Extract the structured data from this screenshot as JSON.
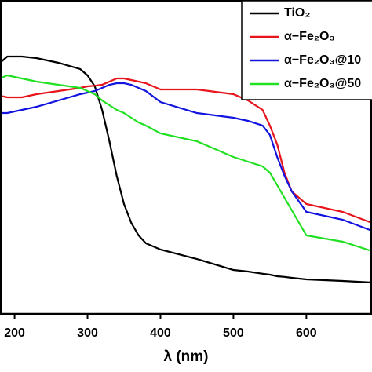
{
  "chart_data": {
    "type": "line",
    "x_label": "λ (nm)",
    "x": [
      180,
      190,
      210,
      230,
      260,
      290,
      300,
      310,
      320,
      330,
      340,
      350,
      360,
      370,
      380,
      400,
      450,
      500,
      520,
      540,
      550,
      560,
      570,
      580,
      600,
      650,
      690
    ],
    "series": [
      {
        "name": "TiO₂",
        "color": "#000000",
        "values": [
          0.8,
          0.82,
          0.82,
          0.815,
          0.8,
          0.78,
          0.76,
          0.725,
          0.65,
          0.55,
          0.44,
          0.35,
          0.29,
          0.25,
          0.225,
          0.205,
          0.175,
          0.14,
          0.135,
          0.128,
          0.125,
          0.12,
          0.118,
          0.115,
          0.11,
          0.105,
          0.1
        ]
      },
      {
        "name": "α−Fe₂O₃",
        "color": "#e8141c",
        "values": [
          0.695,
          0.69,
          0.69,
          0.7,
          0.71,
          0.72,
          0.725,
          0.727,
          0.73,
          0.74,
          0.75,
          0.75,
          0.745,
          0.74,
          0.735,
          0.715,
          0.715,
          0.7,
          0.68,
          0.65,
          0.6,
          0.54,
          0.45,
          0.39,
          0.35,
          0.325,
          0.29
        ]
      },
      {
        "name": "α−Fe₂O₃@10",
        "color": "#1414e0",
        "values": [
          0.64,
          0.64,
          0.65,
          0.66,
          0.68,
          0.7,
          0.705,
          0.71,
          0.72,
          0.73,
          0.735,
          0.735,
          0.73,
          0.72,
          0.71,
          0.675,
          0.64,
          0.625,
          0.615,
          0.6,
          0.57,
          0.5,
          0.44,
          0.39,
          0.325,
          0.3,
          0.265
        ]
      },
      {
        "name": "α−Fe₂O₃@50",
        "color": "#22e022",
        "values": [
          0.75,
          0.76,
          0.75,
          0.74,
          0.73,
          0.72,
          0.71,
          0.7,
          0.68,
          0.665,
          0.65,
          0.64,
          0.625,
          0.61,
          0.6,
          0.575,
          0.55,
          0.5,
          0.485,
          0.47,
          0.45,
          0.41,
          0.37,
          0.33,
          0.25,
          0.23,
          0.2
        ]
      }
    ],
    "xlim": [
      180,
      690
    ],
    "xticks": [
      200,
      300,
      400,
      500,
      600
    ],
    "ylim": [
      0,
      1
    ]
  }
}
